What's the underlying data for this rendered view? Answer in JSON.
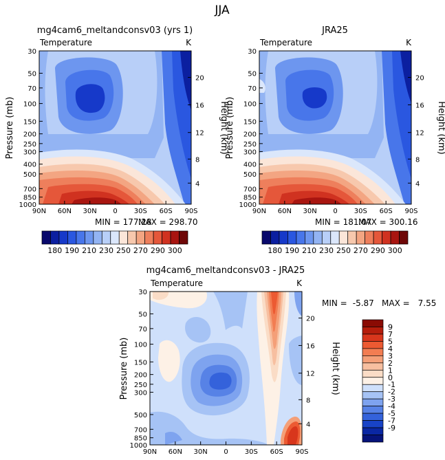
{
  "page": {
    "title": "JJA"
  },
  "chart_data": [
    {
      "type": "contour",
      "title": "mg4cam6_meltandconsv03 (yrs 1)",
      "subtitle_left": "Temperature",
      "subtitle_right": "K",
      "xlabel": "",
      "ylabel": "Pressure (mb)",
      "ylabel_right": "Height (km)",
      "x_ticks": [
        "90N",
        "60N",
        "30N",
        "0",
        "30S",
        "60S",
        "90S"
      ],
      "y_ticks": [
        "30",
        "50",
        "70",
        "100",
        "150",
        "200",
        "250",
        "300",
        "400",
        "500",
        "700",
        "850",
        "1000"
      ],
      "y_ticks_right": [
        "20",
        "16",
        "12",
        "8",
        "4"
      ],
      "stats": {
        "min_label": "MIN = ",
        "min": "177.28",
        "max_label": "MAX = ",
        "max": "298.70"
      },
      "ylim": [
        1000,
        30
      ]
    },
    {
      "type": "contour",
      "title": "JRA25",
      "subtitle_left": "Temperature",
      "subtitle_right": "K",
      "xlabel": "",
      "ylabel": "Pressure (mb)",
      "ylabel_right": "Height (km)",
      "x_ticks": [
        "90N",
        "60N",
        "30N",
        "0",
        "30S",
        "60S",
        "90S"
      ],
      "y_ticks": [
        "30",
        "50",
        "70",
        "100",
        "150",
        "200",
        "250",
        "300",
        "400",
        "500",
        "700",
        "850",
        "1000"
      ],
      "y_ticks_right": [
        "20",
        "16",
        "12",
        "8",
        "4"
      ],
      "stats": {
        "min_label": "MIN = ",
        "min": "181.07",
        "max_label": "MAX = ",
        "max": "300.16"
      },
      "ylim": [
        1000,
        30
      ]
    },
    {
      "type": "contour",
      "title": "mg4cam6_meltandconsv03 - JRA25",
      "subtitle_left": "Temperature",
      "subtitle_right": "K",
      "xlabel": "",
      "ylabel": "Pressure (mb)",
      "ylabel_right": "Height (km)",
      "x_ticks": [
        "90N",
        "60N",
        "30N",
        "0",
        "30S",
        "60S",
        "90S"
      ],
      "y_ticks": [
        "30",
        "50",
        "70",
        "100",
        "150",
        "200",
        "250",
        "300",
        "500",
        "700",
        "850",
        "1000"
      ],
      "y_ticks_right": [
        "20",
        "16",
        "12",
        "8",
        "4"
      ],
      "stats": {
        "min_label": "MIN =",
        "min": "-5.87",
        "max_label": "MAX =",
        "max": "7.55"
      },
      "ylim": [
        1000,
        30
      ]
    }
  ],
  "colorbar_abs": {
    "labels": [
      "180",
      "190",
      "210",
      "230",
      "250",
      "270",
      "290",
      "300"
    ],
    "colors": [
      "#08086b",
      "#0b1fa0",
      "#1639c9",
      "#2a57e0",
      "#4876ea",
      "#6d96ef",
      "#93b4f3",
      "#b8cff8",
      "#dbe7fb",
      "#fbe6d9",
      "#f7c8ad",
      "#f3a582",
      "#ee7f5c",
      "#e5573a",
      "#d03220",
      "#a81510",
      "#6e0707"
    ]
  },
  "colorbar_diff": {
    "labels": [
      "9",
      "7",
      "5",
      "4",
      "3",
      "2",
      "1",
      "0",
      "-1",
      "-2",
      "-3",
      "-4",
      "-5",
      "-7",
      "-9"
    ],
    "colors": [
      "#8a0b04",
      "#b51d0c",
      "#d8361c",
      "#ec5a32",
      "#f27d52",
      "#f49f78",
      "#f7bfa0",
      "#fadcc6",
      "#fdf1e6",
      "#cfe0fb",
      "#a6c3f5",
      "#7ea3ef",
      "#5782e6",
      "#3462db",
      "#1843c7",
      "#0a27a3",
      "#06137a"
    ]
  },
  "fields": {
    "abs_levels": [
      {
        "c": "#b8cff8"
      },
      {
        "c": "#93b4f3"
      },
      {
        "c": "#6d96ef"
      },
      {
        "c": "#4876ea"
      },
      {
        "c": "#dbe7fb"
      },
      {
        "c": "#fbe6d9"
      },
      {
        "c": "#f7c8ad"
      },
      {
        "c": "#f3a582"
      },
      {
        "c": "#ee7f5c"
      },
      {
        "c": "#e5573a"
      },
      {
        "c": "#d03220"
      },
      {
        "c": "#a81510"
      }
    ],
    "diff_base": "#cfe0fb"
  }
}
